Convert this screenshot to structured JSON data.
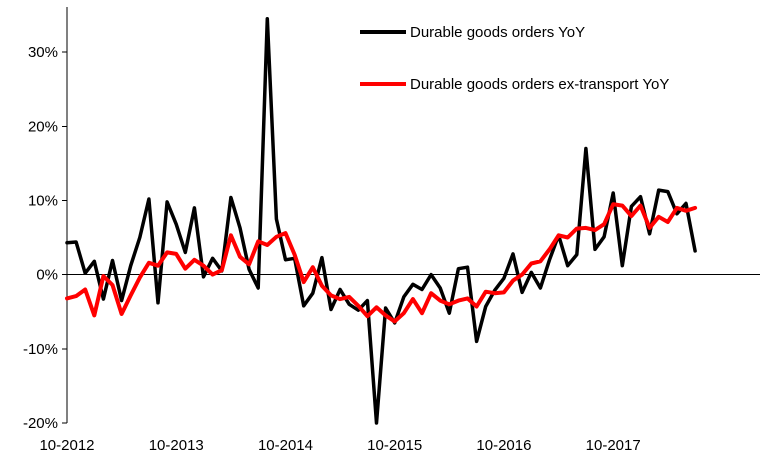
{
  "chart_data": {
    "type": "line",
    "title": "",
    "xlabel": "",
    "ylabel": "",
    "x_start": "2012-10",
    "x_end": "2018-06",
    "ylim": [
      -20,
      35
    ],
    "yticks": [
      -20,
      -10,
      0,
      10,
      20,
      30
    ],
    "ytick_labels": [
      "-20%",
      "-10%",
      "0%",
      "10%",
      "20%",
      "30%"
    ],
    "xticks": [
      "2012-10",
      "2013-10",
      "2014-10",
      "2015-10",
      "2016-10",
      "2017-10"
    ],
    "xtick_labels": [
      "10-2012",
      "10-2013",
      "10-2014",
      "10-2015",
      "10-2016",
      "10-2017"
    ],
    "grid": false,
    "legend_position": "top-right",
    "series": [
      {
        "name": "Durable goods orders YoY",
        "color": "#000000",
        "values": [
          {
            "x": "2012-10",
            "y": 4.3
          },
          {
            "x": "2012-11",
            "y": 4.4
          },
          {
            "x": "2012-12",
            "y": 0.2
          },
          {
            "x": "2013-01",
            "y": 1.8
          },
          {
            "x": "2013-02",
            "y": -3.3
          },
          {
            "x": "2013-03",
            "y": 1.9
          },
          {
            "x": "2013-04",
            "y": -3.5
          },
          {
            "x": "2013-05",
            "y": 1.2
          },
          {
            "x": "2013-06",
            "y": 5.0
          },
          {
            "x": "2013-07",
            "y": 10.2
          },
          {
            "x": "2013-08",
            "y": -3.8
          },
          {
            "x": "2013-09",
            "y": 9.8
          },
          {
            "x": "2013-10",
            "y": 6.8
          },
          {
            "x": "2013-11",
            "y": 3.0
          },
          {
            "x": "2013-12",
            "y": 9.0
          },
          {
            "x": "2014-01",
            "y": -0.3
          },
          {
            "x": "2014-02",
            "y": 2.2
          },
          {
            "x": "2014-03",
            "y": 0.5
          },
          {
            "x": "2014-04",
            "y": 10.4
          },
          {
            "x": "2014-05",
            "y": 6.3
          },
          {
            "x": "2014-06",
            "y": 0.7
          },
          {
            "x": "2014-07",
            "y": -1.8
          },
          {
            "x": "2014-08",
            "y": 34.5
          },
          {
            "x": "2014-09",
            "y": 7.5
          },
          {
            "x": "2014-10",
            "y": 2.0
          },
          {
            "x": "2014-11",
            "y": 2.2
          },
          {
            "x": "2014-12",
            "y": -4.2
          },
          {
            "x": "2015-01",
            "y": -2.5
          },
          {
            "x": "2015-02",
            "y": 2.3
          },
          {
            "x": "2015-03",
            "y": -4.7
          },
          {
            "x": "2015-04",
            "y": -2.0
          },
          {
            "x": "2015-05",
            "y": -4.0
          },
          {
            "x": "2015-06",
            "y": -4.8
          },
          {
            "x": "2015-07",
            "y": -3.5
          },
          {
            "x": "2015-08",
            "y": -20.0
          },
          {
            "x": "2015-09",
            "y": -4.5
          },
          {
            "x": "2015-10",
            "y": -6.5
          },
          {
            "x": "2015-11",
            "y": -3.0
          },
          {
            "x": "2015-12",
            "y": -1.3
          },
          {
            "x": "2016-01",
            "y": -2.0
          },
          {
            "x": "2016-02",
            "y": 0.0
          },
          {
            "x": "2016-03",
            "y": -1.8
          },
          {
            "x": "2016-04",
            "y": -5.2
          },
          {
            "x": "2016-05",
            "y": 0.8
          },
          {
            "x": "2016-06",
            "y": 1.0
          },
          {
            "x": "2016-07",
            "y": -9.0
          },
          {
            "x": "2016-08",
            "y": -4.3
          },
          {
            "x": "2016-09",
            "y": -2.1
          },
          {
            "x": "2016-10",
            "y": -0.5
          },
          {
            "x": "2016-11",
            "y": 2.8
          },
          {
            "x": "2016-12",
            "y": -2.4
          },
          {
            "x": "2017-01",
            "y": 0.3
          },
          {
            "x": "2017-02",
            "y": -1.8
          },
          {
            "x": "2017-03",
            "y": 2.0
          },
          {
            "x": "2017-04",
            "y": 5.3
          },
          {
            "x": "2017-05",
            "y": 1.2
          },
          {
            "x": "2017-06",
            "y": 2.7
          },
          {
            "x": "2017-07",
            "y": 17.0
          },
          {
            "x": "2017-08",
            "y": 3.4
          },
          {
            "x": "2017-09",
            "y": 5.1
          },
          {
            "x": "2017-10",
            "y": 11.0
          },
          {
            "x": "2017-11",
            "y": 1.2
          },
          {
            "x": "2017-12",
            "y": 9.2
          },
          {
            "x": "2018-01",
            "y": 10.5
          },
          {
            "x": "2018-02",
            "y": 5.5
          },
          {
            "x": "2018-03",
            "y": 11.4
          },
          {
            "x": "2018-04",
            "y": 11.2
          },
          {
            "x": "2018-05",
            "y": 8.2
          },
          {
            "x": "2018-06",
            "y": 9.6
          },
          {
            "x": "2018-07",
            "y": 3.2
          }
        ]
      },
      {
        "name": "Durable goods orders ex-transport YoY",
        "color": "#ff0000",
        "values": [
          {
            "x": "2012-10",
            "y": -3.2
          },
          {
            "x": "2012-11",
            "y": -2.9
          },
          {
            "x": "2012-12",
            "y": -2.0
          },
          {
            "x": "2013-01",
            "y": -5.5
          },
          {
            "x": "2013-02",
            "y": -0.2
          },
          {
            "x": "2013-03",
            "y": -1.4
          },
          {
            "x": "2013-04",
            "y": -5.3
          },
          {
            "x": "2013-05",
            "y": -2.8
          },
          {
            "x": "2013-06",
            "y": -0.4
          },
          {
            "x": "2013-07",
            "y": 1.6
          },
          {
            "x": "2013-08",
            "y": 1.2
          },
          {
            "x": "2013-09",
            "y": 3.0
          },
          {
            "x": "2013-10",
            "y": 2.8
          },
          {
            "x": "2013-11",
            "y": 0.8
          },
          {
            "x": "2013-12",
            "y": 2.0
          },
          {
            "x": "2014-01",
            "y": 1.2
          },
          {
            "x": "2014-02",
            "y": 0.0
          },
          {
            "x": "2014-03",
            "y": 0.6
          },
          {
            "x": "2014-04",
            "y": 5.3
          },
          {
            "x": "2014-05",
            "y": 2.4
          },
          {
            "x": "2014-06",
            "y": 1.4
          },
          {
            "x": "2014-07",
            "y": 4.5
          },
          {
            "x": "2014-08",
            "y": 4.0
          },
          {
            "x": "2014-09",
            "y": 5.1
          },
          {
            "x": "2014-10",
            "y": 5.6
          },
          {
            "x": "2014-11",
            "y": 2.7
          },
          {
            "x": "2014-12",
            "y": -1.0
          },
          {
            "x": "2015-01",
            "y": 1.0
          },
          {
            "x": "2015-02",
            "y": -1.5
          },
          {
            "x": "2015-03",
            "y": -2.8
          },
          {
            "x": "2015-04",
            "y": -3.3
          },
          {
            "x": "2015-05",
            "y": -3.0
          },
          {
            "x": "2015-06",
            "y": -4.2
          },
          {
            "x": "2015-07",
            "y": -5.6
          },
          {
            "x": "2015-08",
            "y": -4.4
          },
          {
            "x": "2015-09",
            "y": -5.5
          },
          {
            "x": "2015-10",
            "y": -6.3
          },
          {
            "x": "2015-11",
            "y": -5.2
          },
          {
            "x": "2015-12",
            "y": -3.3
          },
          {
            "x": "2016-01",
            "y": -5.2
          },
          {
            "x": "2016-02",
            "y": -2.5
          },
          {
            "x": "2016-03",
            "y": -3.5
          },
          {
            "x": "2016-04",
            "y": -4.0
          },
          {
            "x": "2016-05",
            "y": -3.5
          },
          {
            "x": "2016-06",
            "y": -3.2
          },
          {
            "x": "2016-07",
            "y": -4.3
          },
          {
            "x": "2016-08",
            "y": -2.3
          },
          {
            "x": "2016-09",
            "y": -2.5
          },
          {
            "x": "2016-10",
            "y": -2.4
          },
          {
            "x": "2016-11",
            "y": -0.8
          },
          {
            "x": "2016-12",
            "y": 0.0
          },
          {
            "x": "2017-01",
            "y": 1.5
          },
          {
            "x": "2017-02",
            "y": 1.8
          },
          {
            "x": "2017-03",
            "y": 3.4
          },
          {
            "x": "2017-04",
            "y": 5.3
          },
          {
            "x": "2017-05",
            "y": 5.0
          },
          {
            "x": "2017-06",
            "y": 6.2
          },
          {
            "x": "2017-07",
            "y": 6.3
          },
          {
            "x": "2017-08",
            "y": 6.0
          },
          {
            "x": "2017-09",
            "y": 6.8
          },
          {
            "x": "2017-10",
            "y": 9.5
          },
          {
            "x": "2017-11",
            "y": 9.3
          },
          {
            "x": "2017-12",
            "y": 7.9
          },
          {
            "x": "2018-01",
            "y": 9.3
          },
          {
            "x": "2018-02",
            "y": 6.3
          },
          {
            "x": "2018-03",
            "y": 7.8
          },
          {
            "x": "2018-04",
            "y": 7.1
          },
          {
            "x": "2018-05",
            "y": 9.0
          },
          {
            "x": "2018-06",
            "y": 8.6
          },
          {
            "x": "2018-07",
            "y": 9.0
          }
        ]
      }
    ]
  }
}
